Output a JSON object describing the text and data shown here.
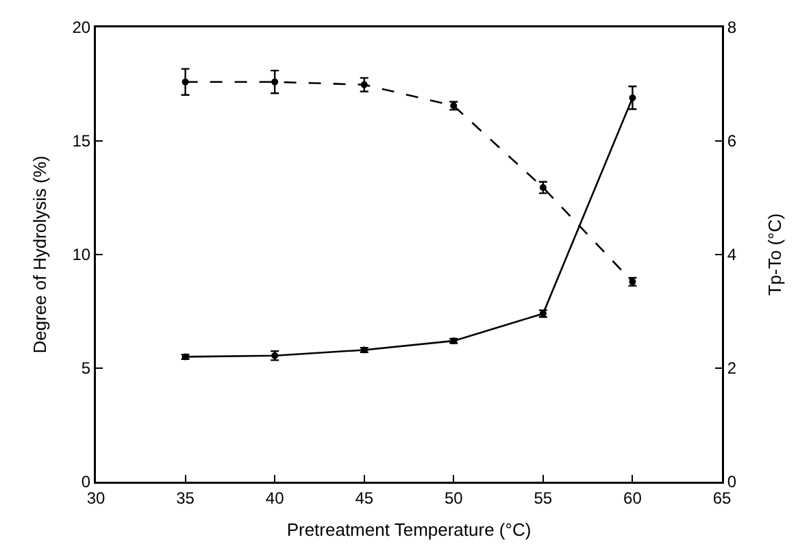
{
  "chart_data": {
    "type": "line",
    "xlabel": "Pretreatment Temperature (°C)",
    "ylabel": "Degree of Hydrolysis (%)",
    "y2label": "Tp-To (°C)",
    "x": [
      35,
      40,
      45,
      50,
      55,
      60
    ],
    "series": [
      {
        "color": "#000000",
        "line_style": "solid",
        "values": [
          5.5,
          5.55,
          5.8,
          6.2,
          7.4,
          16.9
        ],
        "errors": [
          0.1,
          0.2,
          0.1,
          0.1,
          0.15,
          0.5
        ]
      },
      {
        "color": "#000000",
        "line_style": "dashed",
        "axis": "y2",
        "values": [
          7.04,
          7.04,
          6.99,
          6.62,
          5.18,
          3.52
        ],
        "errors": [
          0.23,
          0.2,
          0.12,
          0.07,
          0.1,
          0.07
        ]
      }
    ],
    "xlim": [
      30,
      65
    ],
    "xticks": [
      30,
      35,
      40,
      45,
      50,
      55,
      60,
      65
    ],
    "ylim": [
      0,
      20
    ],
    "yticks": [
      0,
      5,
      10,
      15,
      20
    ],
    "y2lim": [
      0,
      8
    ],
    "y2ticks": [
      0,
      2,
      4,
      6,
      8
    ],
    "marker": "circle",
    "grid": false
  }
}
